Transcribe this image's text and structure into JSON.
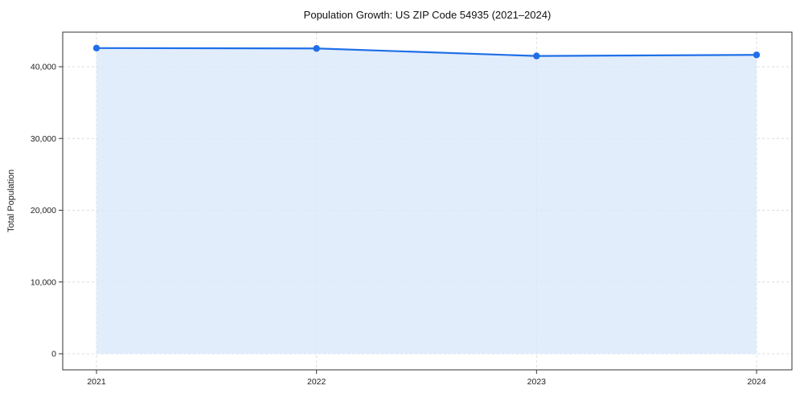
{
  "chart": {
    "title": "Population Growth: US ZIP Code 54935 (2021–2024)",
    "ylabel": "Total Population"
  },
  "chart_data": {
    "type": "area",
    "title": "Population Growth: US ZIP Code 54935 (2021–2024)",
    "xlabel": "",
    "ylabel": "Total Population",
    "x": [
      "2021",
      "2022",
      "2023",
      "2024"
    ],
    "values": [
      42600,
      42550,
      41500,
      41650
    ],
    "ylim": [
      0,
      44800
    ],
    "yticks": [
      0,
      10000,
      20000,
      30000,
      40000
    ],
    "ytick_labels": [
      "0",
      "10,000",
      "20,000",
      "30,000",
      "40,000"
    ],
    "grid": true,
    "grid_style": "dashed",
    "legend": "none",
    "line_color": "#1f6fe8",
    "fill_color": "#dbe8fb",
    "grid_color": "#dcdcdc",
    "frame_color": "#333333",
    "marker": "circle"
  }
}
